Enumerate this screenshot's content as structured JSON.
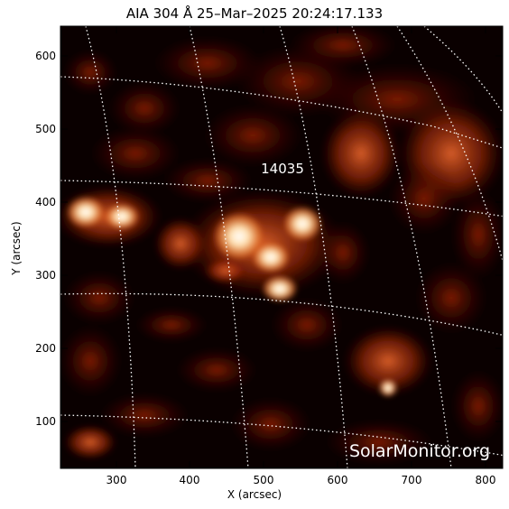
{
  "title": "AIA 304 Å 25–Mar–2025  20:24:17.133",
  "axes": {
    "x_label": "X (arcsec)",
    "y_label": "Y (arcsec)",
    "x_ticks": [
      "300",
      "400",
      "500",
      "600",
      "700",
      "800"
    ],
    "y_ticks": [
      "100",
      "200",
      "300",
      "400",
      "500",
      "600"
    ]
  },
  "active_region": "14035",
  "watermark": "SolarMonitor.org",
  "colors": {
    "background": "#0a0000",
    "plasma_dim": "#5a0c00",
    "plasma_mid": "#a8280a",
    "plasma_bright": "#e06a28",
    "plasma_hot": "#ffe9c8",
    "grid": "#ffffff"
  }
}
